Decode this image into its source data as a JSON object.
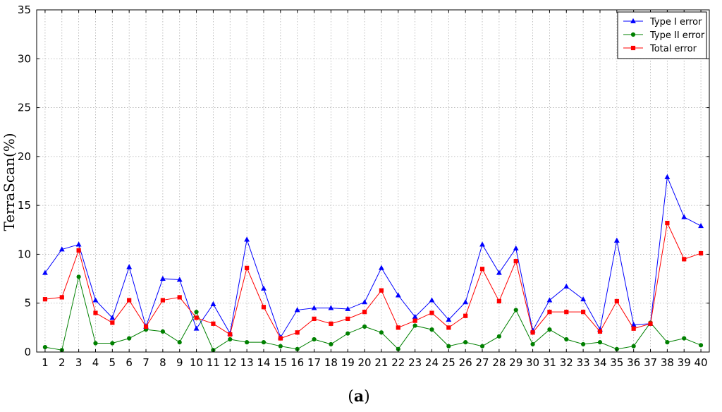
{
  "chart_data": {
    "type": "line",
    "title": "",
    "xlabel": "",
    "ylabel": "TerraScan(%)",
    "panel_label": {
      "open": "(",
      "letter": "a",
      "close": ")"
    },
    "categories": [
      "1",
      "2",
      "3",
      "4",
      "5",
      "6",
      "7",
      "8",
      "9",
      "10",
      "11",
      "12",
      "13",
      "14",
      "15",
      "16",
      "17",
      "18",
      "19",
      "20",
      "21",
      "22",
      "23",
      "24",
      "25",
      "26",
      "27",
      "28",
      "29",
      "30",
      "31",
      "32",
      "33",
      "34",
      "35",
      "36",
      "37",
      "38",
      "39",
      "40"
    ],
    "x": [
      1,
      2,
      3,
      4,
      5,
      6,
      7,
      8,
      9,
      10,
      11,
      12,
      13,
      14,
      15,
      16,
      17,
      18,
      19,
      20,
      21,
      22,
      23,
      24,
      25,
      26,
      27,
      28,
      29,
      30,
      31,
      32,
      33,
      34,
      35,
      36,
      37,
      38,
      39,
      40
    ],
    "ylim": [
      0,
      35
    ],
    "xlim": [
      0.5,
      40.5
    ],
    "yticks": [
      0,
      5,
      10,
      15,
      20,
      25,
      30,
      35
    ],
    "grid": true,
    "legend_position": "top-right",
    "series": [
      {
        "name": "Type I error",
        "color": "#0000ff",
        "marker": "triangle",
        "values": [
          8.1,
          10.5,
          11.0,
          5.3,
          3.5,
          8.7,
          2.6,
          7.5,
          7.4,
          2.4,
          4.9,
          1.9,
          11.5,
          6.5,
          1.5,
          4.3,
          4.5,
          4.5,
          4.4,
          5.1,
          8.6,
          5.8,
          3.6,
          5.3,
          3.3,
          5.1,
          11.0,
          8.1,
          10.6,
          2.2,
          5.3,
          6.7,
          5.4,
          2.3,
          11.4,
          2.8,
          2.9,
          17.9,
          13.8,
          12.9
        ]
      },
      {
        "name": "Type II error",
        "color": "#008000",
        "marker": "circle",
        "values": [
          0.5,
          0.2,
          7.7,
          0.9,
          0.9,
          1.4,
          2.3,
          2.1,
          1.0,
          4.1,
          0.2,
          1.3,
          1.0,
          1.0,
          0.6,
          0.3,
          1.3,
          0.8,
          1.9,
          2.6,
          2.0,
          0.3,
          2.7,
          2.3,
          0.6,
          1.0,
          0.6,
          1.6,
          4.3,
          0.8,
          2.3,
          1.3,
          0.8,
          1.0,
          0.3,
          0.6,
          3.0,
          1.0,
          1.4,
          0.7
        ]
      },
      {
        "name": "Total error",
        "color": "#ff0000",
        "marker": "square",
        "values": [
          5.4,
          5.6,
          10.4,
          4.0,
          3.0,
          5.3,
          2.6,
          5.3,
          5.6,
          3.5,
          2.9,
          1.8,
          8.6,
          4.6,
          1.4,
          2.0,
          3.4,
          2.9,
          3.4,
          4.1,
          6.3,
          2.5,
          3.2,
          4.0,
          2.5,
          3.7,
          8.5,
          5.2,
          9.3,
          2.0,
          4.1,
          4.1,
          4.1,
          2.1,
          5.2,
          2.4,
          2.9,
          13.2,
          9.5,
          10.1
        ]
      }
    ]
  }
}
